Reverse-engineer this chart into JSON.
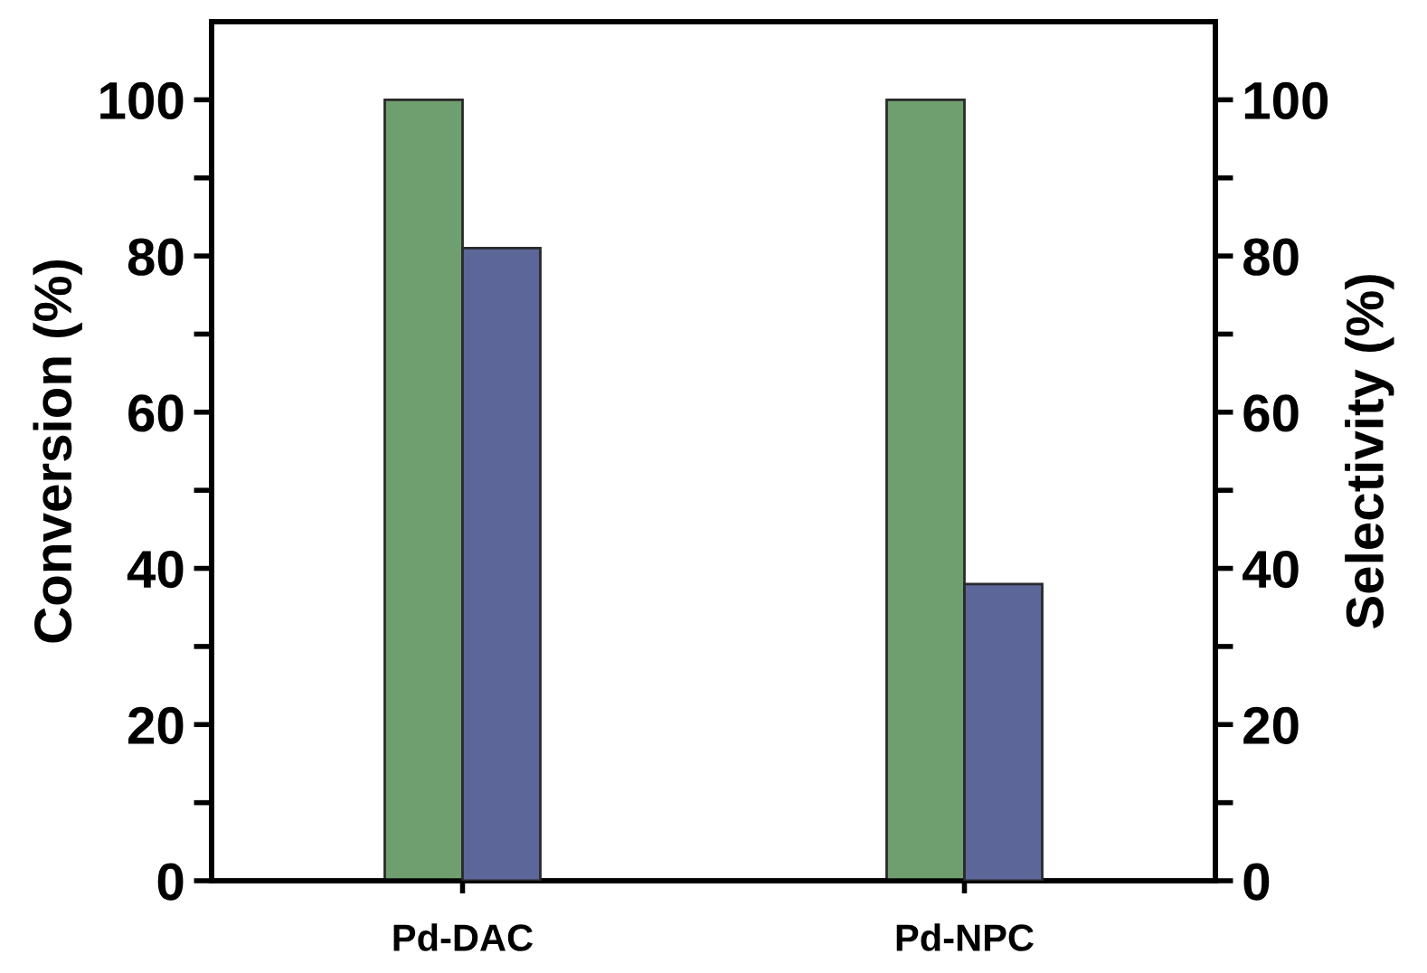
{
  "chart_data": {
    "type": "bar",
    "categories": [
      "Pd-DAC",
      "Pd-NPC"
    ],
    "ylabel": "Conversion (%)",
    "y2label": "Selectivity (%)",
    "series": [
      {
        "color": "#6f9f6f",
        "values": [
          100,
          100
        ]
      },
      {
        "color": "#5c6699",
        "values": [
          81,
          38
        ],
        "axis": "y2"
      }
    ],
    "ylim": [
      0,
      110
    ],
    "yticks": [
      0,
      {
        "value": 10,
        "label": null
      },
      20,
      {
        "value": 30,
        "label": null
      },
      40,
      {
        "value": 50,
        "label": null
      },
      60,
      {
        "value": 70,
        "label": null
      },
      80,
      {
        "value": 90,
        "label": null
      },
      100
    ],
    "y2lim": [
      0,
      110
    ],
    "y2ticks": [
      0,
      {
        "value": 10,
        "label": null
      },
      20,
      {
        "value": 30,
        "label": null
      },
      40,
      {
        "value": 50,
        "label": null
      },
      60,
      {
        "value": 70,
        "label": null
      },
      80,
      {
        "value": 90,
        "label": null
      },
      100
    ],
    "grid": false
  }
}
